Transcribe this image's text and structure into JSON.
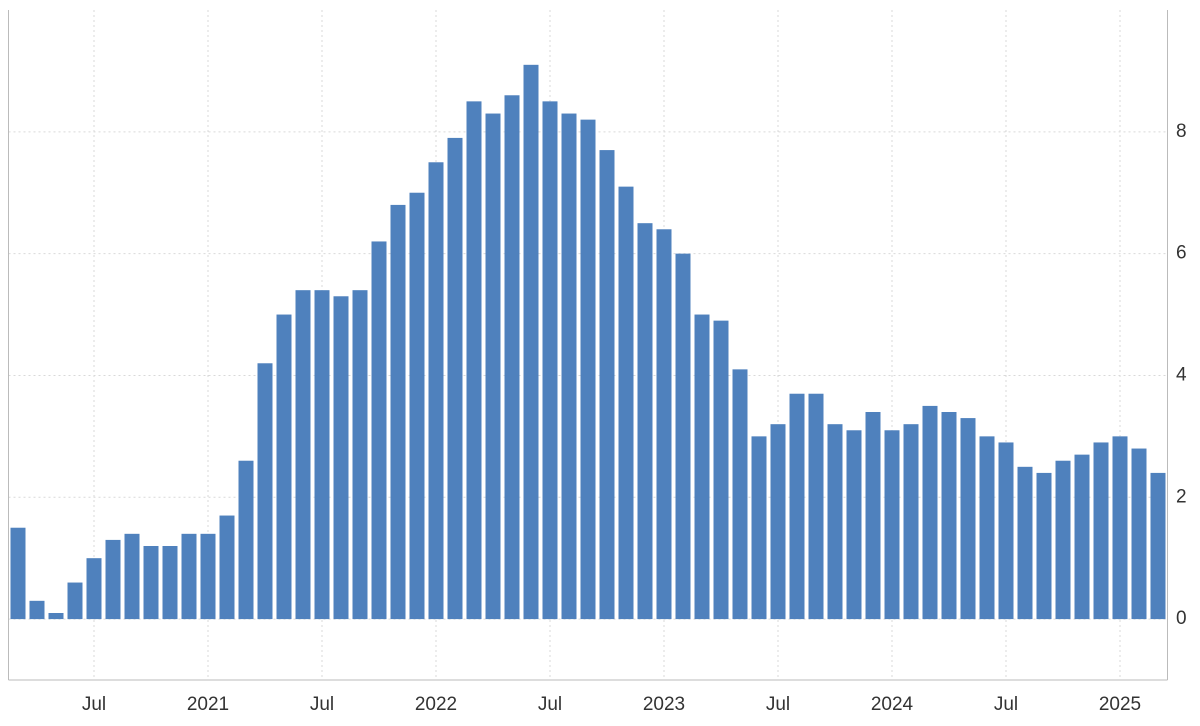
{
  "chart_data": {
    "type": "bar",
    "categories": [
      null,
      null,
      null,
      null,
      "Jul",
      null,
      null,
      null,
      null,
      null,
      "2021",
      null,
      null,
      null,
      null,
      null,
      "Jul",
      null,
      null,
      null,
      null,
      null,
      "2022",
      null,
      null,
      null,
      null,
      null,
      "Jul",
      null,
      null,
      null,
      null,
      null,
      "2023",
      null,
      null,
      null,
      null,
      null,
      "Jul",
      null,
      null,
      null,
      null,
      null,
      "2024",
      null,
      null,
      null,
      null,
      null,
      "Jul",
      null,
      null,
      null,
      null,
      null,
      "2025",
      null,
      null
    ],
    "values": [
      1.5,
      0.3,
      0.1,
      0.6,
      1.0,
      1.3,
      1.4,
      1.2,
      1.2,
      1.4,
      1.4,
      1.7,
      2.6,
      4.2,
      5.0,
      5.4,
      5.4,
      5.3,
      5.4,
      6.2,
      6.8,
      7.0,
      7.5,
      7.9,
      8.5,
      8.3,
      8.6,
      9.1,
      8.5,
      8.3,
      8.2,
      7.7,
      7.1,
      6.5,
      6.4,
      6.0,
      5.0,
      4.9,
      4.1,
      3.0,
      3.2,
      3.7,
      3.7,
      3.2,
      3.1,
      3.4,
      3.1,
      3.2,
      3.5,
      3.4,
      3.3,
      3.0,
      2.9,
      2.5,
      2.4,
      2.6,
      2.7,
      2.9,
      3.0,
      2.8,
      2.4
    ],
    "color": "#4f81bd",
    "ylim": [
      -1,
      10
    ],
    "yticks": [
      0,
      2,
      4,
      6,
      8
    ],
    "grid": true
  }
}
